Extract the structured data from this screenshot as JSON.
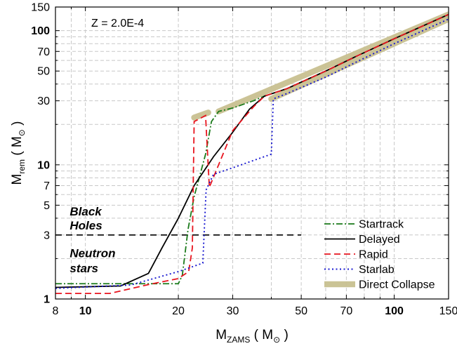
{
  "chart_data": {
    "type": "line",
    "title": "",
    "annotation_z": "Z = 2.0E-4",
    "xlabel": {
      "main": "M",
      "sub": "ZAMS",
      "unit_open": " ( M",
      "unit_symbol": "⊙",
      "unit_close": " )"
    },
    "ylabel": {
      "main": "M",
      "sub": "rem",
      "unit_open": " ( M",
      "unit_symbol": "⊙",
      "unit_close": " )"
    },
    "xscale": "log",
    "yscale": "log",
    "xlim": [
      8,
      150
    ],
    "ylim": [
      1,
      150
    ],
    "grid": true,
    "legend_position": "bottom-right",
    "x_ticks": [
      {
        "value": 8,
        "label": "8",
        "bold": false
      },
      {
        "value": 10,
        "label": "10",
        "bold": true
      },
      {
        "value": 20,
        "label": "20",
        "bold": false
      },
      {
        "value": 30,
        "label": "30",
        "bold": false
      },
      {
        "value": 50,
        "label": "50",
        "bold": false
      },
      {
        "value": 70,
        "label": "70",
        "bold": false
      },
      {
        "value": 100,
        "label": "100",
        "bold": true
      },
      {
        "value": 150,
        "label": "150",
        "bold": false
      }
    ],
    "x_minor_ticks": [
      9,
      40,
      60,
      80,
      90
    ],
    "y_ticks": [
      {
        "value": 1,
        "label": "1",
        "bold": true
      },
      {
        "value": 3,
        "label": "3",
        "bold": false
      },
      {
        "value": 5,
        "label": "5",
        "bold": false
      },
      {
        "value": 7,
        "label": "7",
        "bold": false
      },
      {
        "value": 10,
        "label": "10",
        "bold": true
      },
      {
        "value": 30,
        "label": "30",
        "bold": false
      },
      {
        "value": 50,
        "label": "50",
        "bold": false
      },
      {
        "value": 70,
        "label": "70",
        "bold": false
      },
      {
        "value": 100,
        "label": "100",
        "bold": true
      },
      {
        "value": 150,
        "label": "150",
        "bold": false
      }
    ],
    "y_minor_ticks": [
      2,
      4,
      6,
      8,
      9,
      20,
      40,
      60,
      80,
      90
    ],
    "threshold_line": {
      "y": 3,
      "x_range": [
        8,
        50
      ],
      "color": "#000000"
    },
    "region_labels": [
      {
        "lines": [
          "Black",
          "Holes"
        ],
        "x": 8.9,
        "y": [
          4.2,
          3.3
        ]
      },
      {
        "lines": [
          "Neutron",
          "stars"
        ],
        "x": 8.9,
        "y": [
          2.05,
          1.58
        ]
      }
    ],
    "series": [
      {
        "name": "Direct Collapse",
        "color": "#c8c090",
        "style": "thick",
        "segments": [
          [
            [
              22.5,
              22.5
            ],
            [
              25,
              24.5
            ]
          ],
          [
            [
              27,
              25
            ],
            [
              150,
              132
            ]
          ],
          [
            [
              40,
              31
            ],
            [
              150,
              122
            ]
          ]
        ]
      },
      {
        "name": "Startrack",
        "color": "#1a7a1a",
        "style": "dashdot",
        "segments": [
          [
            [
              8,
              1.3
            ],
            [
              20,
              1.3
            ],
            [
              20.6,
              1.5
            ],
            [
              21.5,
              3.3
            ],
            [
              22.5,
              5.8
            ],
            [
              24.5,
              12
            ],
            [
              25.6,
              21
            ],
            [
              27,
              25
            ],
            [
              30,
              26.5
            ],
            [
              35,
              30
            ],
            [
              38,
              32.5
            ],
            [
              45,
              37
            ],
            [
              60,
              50
            ],
            [
              75,
              64
            ],
            [
              100,
              87
            ],
            [
              150,
              132
            ]
          ]
        ]
      },
      {
        "name": "Delayed",
        "color": "#000000",
        "style": "solid",
        "segments": [
          [
            [
              8,
              1.22
            ],
            [
              13,
              1.25
            ],
            [
              16,
              1.55
            ],
            [
              17.7,
              2.4
            ],
            [
              20,
              4
            ],
            [
              22.5,
              7
            ],
            [
              26,
              11.5
            ],
            [
              30,
              17.5
            ],
            [
              34,
              26
            ],
            [
              38,
              32.5
            ],
            [
              45,
              37
            ],
            [
              60,
              50
            ],
            [
              75,
              64
            ],
            [
              100,
              87
            ],
            [
              150,
              132
            ]
          ]
        ]
      },
      {
        "name": "Rapid",
        "color": "#e8141e",
        "style": "dashed",
        "segments": [
          [
            [
              8,
              1.1
            ],
            [
              12,
              1.1
            ],
            [
              16,
              1.28
            ],
            [
              20,
              1.42
            ],
            [
              21.6,
              1.6
            ],
            [
              22.2,
              2.4
            ],
            [
              22.5,
              21
            ],
            [
              24.5,
              23.3
            ],
            [
              25.2,
              6.8
            ],
            [
              30,
              18
            ],
            [
              35,
              27
            ],
            [
              38,
              32.5
            ],
            [
              45,
              37
            ],
            [
              60,
              50
            ],
            [
              75,
              64
            ],
            [
              100,
              87
            ],
            [
              150,
              132
            ]
          ]
        ]
      },
      {
        "name": "Starlab",
        "color": "#1818d0",
        "style": "dotted",
        "segments": [
          [
            [
              8,
              1.2
            ],
            [
              14,
              1.27
            ],
            [
              20,
              1.6
            ],
            [
              24,
              1.85
            ],
            [
              24.6,
              6.5
            ],
            [
              26,
              8.5
            ],
            [
              30,
              9.5
            ],
            [
              40,
              12
            ],
            [
              40.6,
              31
            ],
            [
              45,
              34
            ],
            [
              60,
              45
            ],
            [
              75,
              58
            ],
            [
              100,
              80
            ],
            [
              150,
              122
            ]
          ]
        ]
      }
    ],
    "legend_order": [
      "Startrack",
      "Delayed",
      "Rapid",
      "Starlab",
      "Direct Collapse"
    ]
  }
}
